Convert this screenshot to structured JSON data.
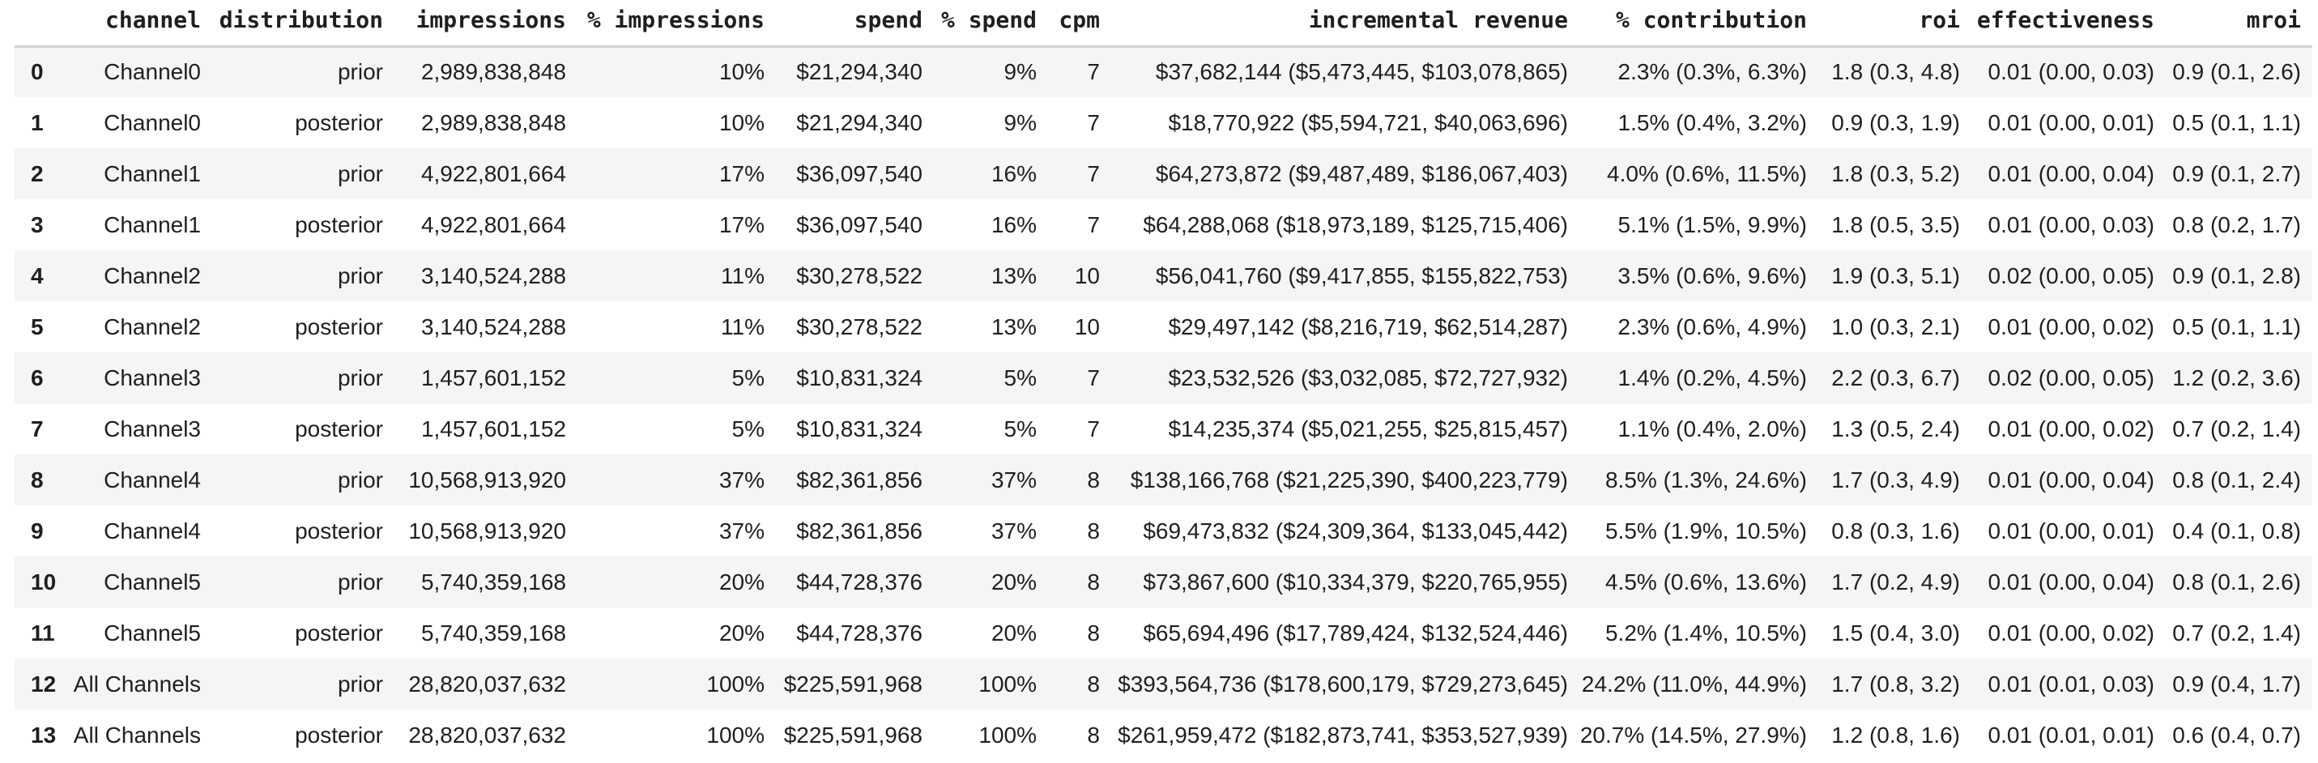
{
  "colors": {
    "text": "#1f1f1f",
    "row_stripe": "#f5f5f5",
    "header_rule": "#d2d2d2",
    "background": "#ffffff"
  },
  "table": {
    "columns": [
      "channel",
      "distribution",
      "impressions",
      "% impressions",
      "spend",
      "% spend",
      "cpm",
      "incremental revenue",
      "% contribution",
      "roi",
      "effectiveness",
      "mroi"
    ],
    "column_keys": [
      "channel",
      "distribution",
      "impressions",
      "pct-impressions",
      "spend",
      "pct-spend",
      "cpm",
      "incremental-revenue",
      "pct-contribution",
      "roi",
      "effectiveness",
      "mroi"
    ],
    "rows": [
      {
        "index": "0",
        "values": [
          "Channel0",
          "prior",
          "2,989,838,848",
          "10%",
          "$21,294,340",
          "9%",
          "7",
          "$37,682,144 ($5,473,445, $103,078,865)",
          "2.3% (0.3%, 6.3%)",
          "1.8 (0.3, 4.8)",
          "0.01 (0.00, 0.03)",
          "0.9 (0.1, 2.6)"
        ]
      },
      {
        "index": "1",
        "values": [
          "Channel0",
          "posterior",
          "2,989,838,848",
          "10%",
          "$21,294,340",
          "9%",
          "7",
          "$18,770,922 ($5,594,721, $40,063,696)",
          "1.5% (0.4%, 3.2%)",
          "0.9 (0.3, 1.9)",
          "0.01 (0.00, 0.01)",
          "0.5 (0.1, 1.1)"
        ]
      },
      {
        "index": "2",
        "values": [
          "Channel1",
          "prior",
          "4,922,801,664",
          "17%",
          "$36,097,540",
          "16%",
          "7",
          "$64,273,872 ($9,487,489, $186,067,403)",
          "4.0% (0.6%, 11.5%)",
          "1.8 (0.3, 5.2)",
          "0.01 (0.00, 0.04)",
          "0.9 (0.1, 2.7)"
        ]
      },
      {
        "index": "3",
        "values": [
          "Channel1",
          "posterior",
          "4,922,801,664",
          "17%",
          "$36,097,540",
          "16%",
          "7",
          "$64,288,068 ($18,973,189, $125,715,406)",
          "5.1% (1.5%, 9.9%)",
          "1.8 (0.5, 3.5)",
          "0.01 (0.00, 0.03)",
          "0.8 (0.2, 1.7)"
        ]
      },
      {
        "index": "4",
        "values": [
          "Channel2",
          "prior",
          "3,140,524,288",
          "11%",
          "$30,278,522",
          "13%",
          "10",
          "$56,041,760 ($9,417,855, $155,822,753)",
          "3.5% (0.6%, 9.6%)",
          "1.9 (0.3, 5.1)",
          "0.02 (0.00, 0.05)",
          "0.9 (0.1, 2.8)"
        ]
      },
      {
        "index": "5",
        "values": [
          "Channel2",
          "posterior",
          "3,140,524,288",
          "11%",
          "$30,278,522",
          "13%",
          "10",
          "$29,497,142 ($8,216,719, $62,514,287)",
          "2.3% (0.6%, 4.9%)",
          "1.0 (0.3, 2.1)",
          "0.01 (0.00, 0.02)",
          "0.5 (0.1, 1.1)"
        ]
      },
      {
        "index": "6",
        "values": [
          "Channel3",
          "prior",
          "1,457,601,152",
          "5%",
          "$10,831,324",
          "5%",
          "7",
          "$23,532,526 ($3,032,085, $72,727,932)",
          "1.4% (0.2%, 4.5%)",
          "2.2 (0.3, 6.7)",
          "0.02 (0.00, 0.05)",
          "1.2 (0.2, 3.6)"
        ]
      },
      {
        "index": "7",
        "values": [
          "Channel3",
          "posterior",
          "1,457,601,152",
          "5%",
          "$10,831,324",
          "5%",
          "7",
          "$14,235,374 ($5,021,255, $25,815,457)",
          "1.1% (0.4%, 2.0%)",
          "1.3 (0.5, 2.4)",
          "0.01 (0.00, 0.02)",
          "0.7 (0.2, 1.4)"
        ]
      },
      {
        "index": "8",
        "values": [
          "Channel4",
          "prior",
          "10,568,913,920",
          "37%",
          "$82,361,856",
          "37%",
          "8",
          "$138,166,768 ($21,225,390, $400,223,779)",
          "8.5% (1.3%, 24.6%)",
          "1.7 (0.3, 4.9)",
          "0.01 (0.00, 0.04)",
          "0.8 (0.1, 2.4)"
        ]
      },
      {
        "index": "9",
        "values": [
          "Channel4",
          "posterior",
          "10,568,913,920",
          "37%",
          "$82,361,856",
          "37%",
          "8",
          "$69,473,832 ($24,309,364, $133,045,442)",
          "5.5% (1.9%, 10.5%)",
          "0.8 (0.3, 1.6)",
          "0.01 (0.00, 0.01)",
          "0.4 (0.1, 0.8)"
        ]
      },
      {
        "index": "10",
        "values": [
          "Channel5",
          "prior",
          "5,740,359,168",
          "20%",
          "$44,728,376",
          "20%",
          "8",
          "$73,867,600 ($10,334,379, $220,765,955)",
          "4.5% (0.6%, 13.6%)",
          "1.7 (0.2, 4.9)",
          "0.01 (0.00, 0.04)",
          "0.8 (0.1, 2.6)"
        ]
      },
      {
        "index": "11",
        "values": [
          "Channel5",
          "posterior",
          "5,740,359,168",
          "20%",
          "$44,728,376",
          "20%",
          "8",
          "$65,694,496 ($17,789,424, $132,524,446)",
          "5.2% (1.4%, 10.5%)",
          "1.5 (0.4, 3.0)",
          "0.01 (0.00, 0.02)",
          "0.7 (0.2, 1.4)"
        ]
      },
      {
        "index": "12",
        "values": [
          "All Channels",
          "prior",
          "28,820,037,632",
          "100%",
          "$225,591,968",
          "100%",
          "8",
          "$393,564,736 ($178,600,179, $729,273,645)",
          "24.2% (11.0%, 44.9%)",
          "1.7 (0.8, 3.2)",
          "0.01 (0.01, 0.03)",
          "0.9 (0.4, 1.7)"
        ]
      },
      {
        "index": "13",
        "values": [
          "All Channels",
          "posterior",
          "28,820,037,632",
          "100%",
          "$225,591,968",
          "100%",
          "8",
          "$261,959,472 ($182,873,741, $353,527,939)",
          "20.7% (14.5%, 27.9%)",
          "1.2 (0.8, 1.6)",
          "0.01 (0.01, 0.01)",
          "0.6 (0.4, 0.7)"
        ]
      }
    ]
  }
}
